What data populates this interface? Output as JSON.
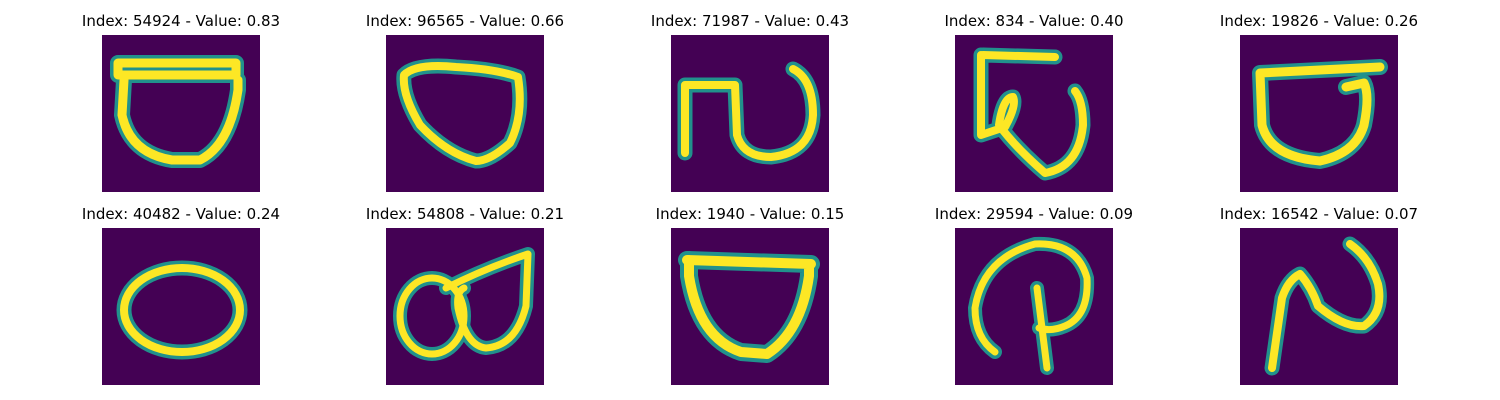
{
  "colors": {
    "background": "#440154",
    "stroke_core": "#fde725",
    "stroke_edge": "#21918c",
    "stroke_mid": "#5ec962"
  },
  "panels": [
    {
      "title": "Index: 54924 - Value: 0.83",
      "index": 54924,
      "value": 0.83
    },
    {
      "title": "Index: 96565 - Value: 0.66",
      "index": 96565,
      "value": 0.66
    },
    {
      "title": "Index: 71987 - Value: 0.43",
      "index": 71987,
      "value": 0.43
    },
    {
      "title": "Index: 834 - Value: 0.40",
      "index": 834,
      "value": 0.4
    },
    {
      "title": "Index: 19826 - Value: 0.26",
      "index": 19826,
      "value": 0.26
    },
    {
      "title": "Index: 40482 - Value: 0.24",
      "index": 40482,
      "value": 0.24
    },
    {
      "title": "Index: 54808 - Value: 0.21",
      "index": 54808,
      "value": 0.21
    },
    {
      "title": "Index: 1940 - Value: 0.15",
      "index": 1940,
      "value": 0.15
    },
    {
      "title": "Index: 29594 - Value: 0.09",
      "index": 29594,
      "value": 0.09
    },
    {
      "title": "Index: 16542 - Value: 0.07",
      "index": 16542,
      "value": 0.07
    }
  ]
}
